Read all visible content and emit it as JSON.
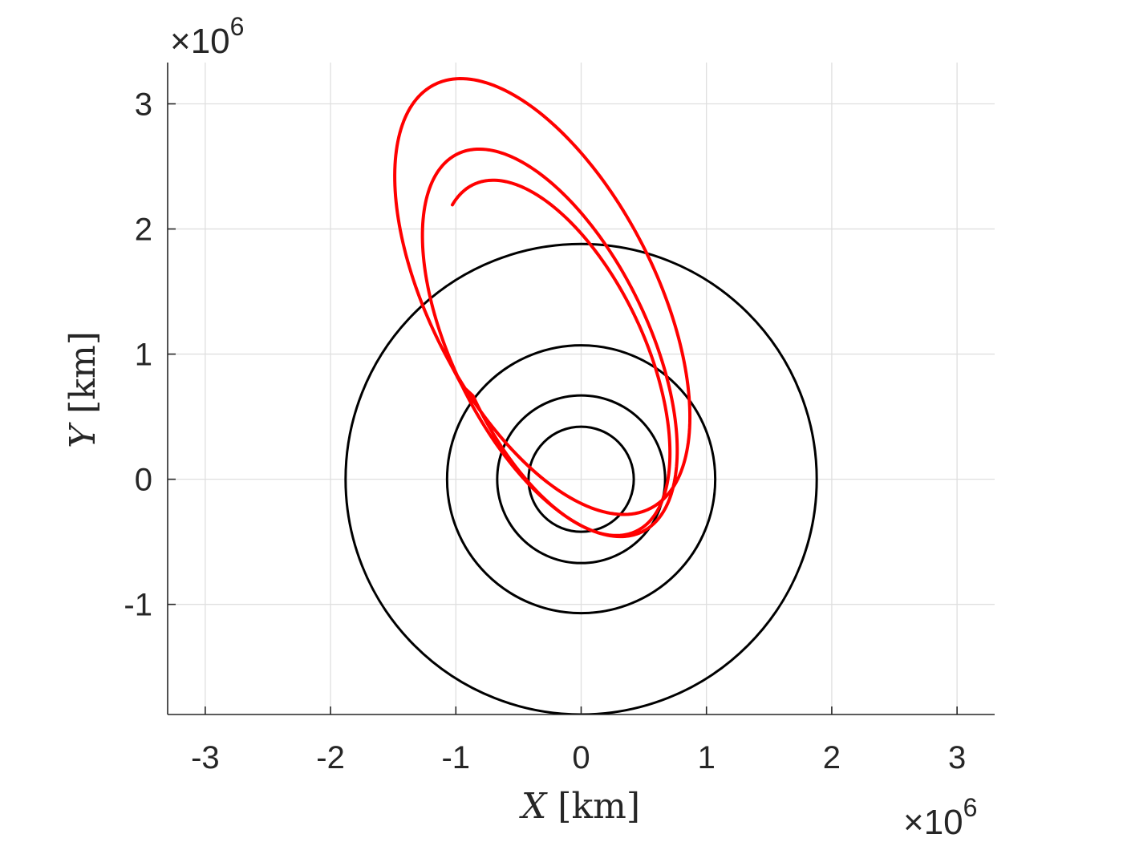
{
  "chart_data": {
    "type": "line",
    "title": "",
    "xlabel": {
      "var": "X",
      "unit": "[km]"
    },
    "ylabel": {
      "var": "Y",
      "unit": "[km]"
    },
    "x_exponent": {
      "base": "×10",
      "power": "6"
    },
    "y_exponent": {
      "base": "×10",
      "power": "6"
    },
    "xlim": [
      -3.3,
      3.3
    ],
    "ylim": [
      -1.88,
      3.33
    ],
    "xticks": [
      -3,
      -2,
      -1,
      0,
      1,
      2,
      3
    ],
    "yticks": [
      -1,
      0,
      1,
      2,
      3
    ],
    "xtick_labels": [
      "-3",
      "-2",
      "-1",
      "0",
      "1",
      "2",
      "3"
    ],
    "ytick_labels": [
      "-1",
      "0",
      "1",
      "2",
      "3"
    ],
    "grid": true,
    "unit_scale": 1000000,
    "circles": [
      {
        "cx": 0,
        "cy": 0,
        "r": 0.42,
        "color": "#000000"
      },
      {
        "cx": 0,
        "cy": 0,
        "r": 0.67,
        "color": "#000000"
      },
      {
        "cx": 0,
        "cy": 0,
        "r": 1.07,
        "color": "#000000"
      },
      {
        "cx": 0,
        "cy": 0,
        "r": 1.88,
        "color": "#000000"
      }
    ],
    "trajectory_color": "#ff0000",
    "trajectory_loops": [
      {
        "cx": -0.31,
        "cy": 1.46,
        "a": 1.9,
        "b": 0.9,
        "tilt_deg": 117,
        "t_start": 1.5708,
        "t_end": 7.854
      },
      {
        "cx": -0.25,
        "cy": 1.09,
        "a": 1.68,
        "b": 0.78,
        "tilt_deg": 116,
        "t_start": 1.5708,
        "t_end": 7.854
      },
      {
        "cx": -0.21,
        "cy": 0.97,
        "a": 1.53,
        "b": 0.72,
        "tilt_deg": 115,
        "t_start": 1.5708,
        "t_end": 6.6
      }
    ]
  }
}
